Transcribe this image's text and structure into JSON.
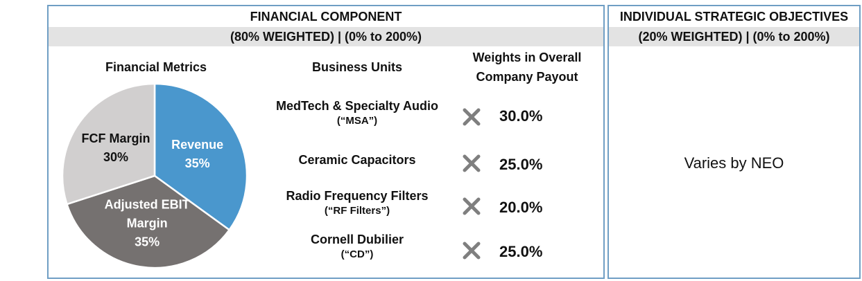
{
  "left_panel": {
    "title": "FINANCIAL COMPONENT",
    "subtitle": "(80% WEIGHTED) | (0% to 200%)",
    "headers": {
      "metrics": "Financial Metrics",
      "units": "Business Units",
      "weights_line1": "Weights in Overall",
      "weights_line2": "Company Payout"
    },
    "business_units": [
      {
        "name": "MedTech & Specialty Audio",
        "abbr": "(“MSA”)",
        "weight": "30.0%"
      },
      {
        "name": "Ceramic Capacitors",
        "abbr": "",
        "weight": "25.0%"
      },
      {
        "name": "Radio Frequency Filters",
        "abbr": "(“RF Filters”)",
        "weight": "20.0%"
      },
      {
        "name": "Cornell Dubilier",
        "abbr": "(“CD”)",
        "weight": "25.0%"
      }
    ]
  },
  "right_panel": {
    "title": "INDIVIDUAL STRATEGIC OBJECTIVES",
    "subtitle": "(20% WEIGHTED) | (0% to 200%)",
    "body": "Varies by NEO"
  },
  "icons": {
    "multiply": "multiply-x-icon"
  },
  "colors": {
    "border": "#6f9ec4",
    "header_band": "#e3e3e3",
    "revenue": "#4a97cd",
    "ebit": "#757170",
    "fcf": "#d1cfcf",
    "x_mark": "#7f7f7f"
  },
  "chart_data": {
    "type": "pie",
    "title": "",
    "slices": [
      {
        "label_lines": [
          "Revenue"
        ],
        "value": 35,
        "value_label": "35%",
        "color": "#4a97cd",
        "text_color": "#ffffff"
      },
      {
        "label_lines": [
          "Adjusted EBIT",
          "Margin"
        ],
        "value": 35,
        "value_label": "35%",
        "color": "#757170",
        "text_color": "#ffffff"
      },
      {
        "label_lines": [
          "FCF Margin"
        ],
        "value": 30,
        "value_label": "30%",
        "color": "#d1cfcf",
        "text_color": "#111111"
      }
    ]
  }
}
